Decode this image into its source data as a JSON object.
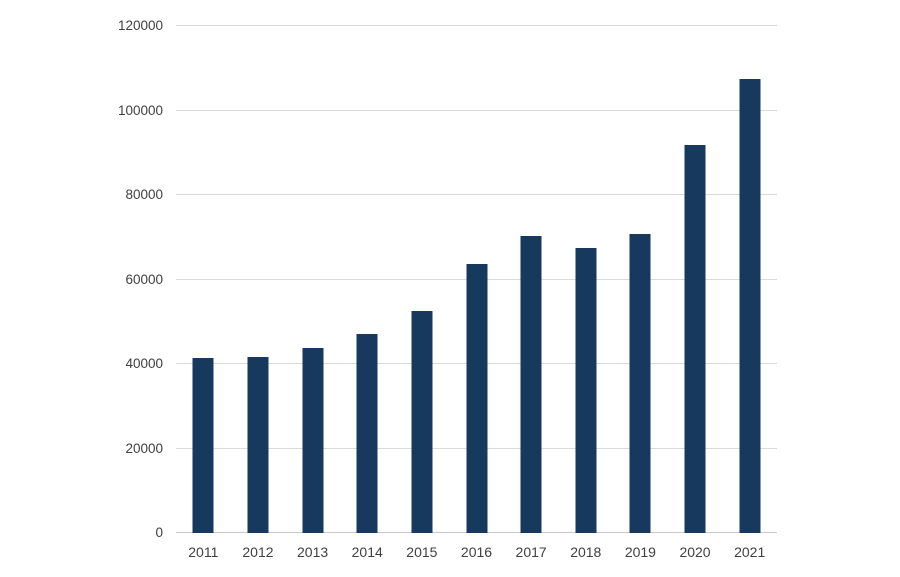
{
  "chart_data": {
    "type": "bar",
    "title": "",
    "xlabel": "",
    "ylabel": "",
    "categories": [
      "2011",
      "2012",
      "2013",
      "2014",
      "2015",
      "2016",
      "2017",
      "2018",
      "2019",
      "2020",
      "2021"
    ],
    "values": [
      41400,
      41700,
      43900,
      47000,
      52500,
      63600,
      70300,
      67400,
      70800,
      91800,
      107500
    ],
    "ylim": [
      0,
      120000
    ],
    "ytick_step": 20000,
    "ytick_labels": [
      "0",
      "20000",
      "40000",
      "60000",
      "80000",
      "100000",
      "120000"
    ],
    "grid": true,
    "legend": false,
    "colors": {
      "bar": "#17395e",
      "gridline": "#d9d9d9",
      "axis_line": "#c6c6c6",
      "tick_label": "#404040",
      "background": "#ffffff"
    }
  }
}
